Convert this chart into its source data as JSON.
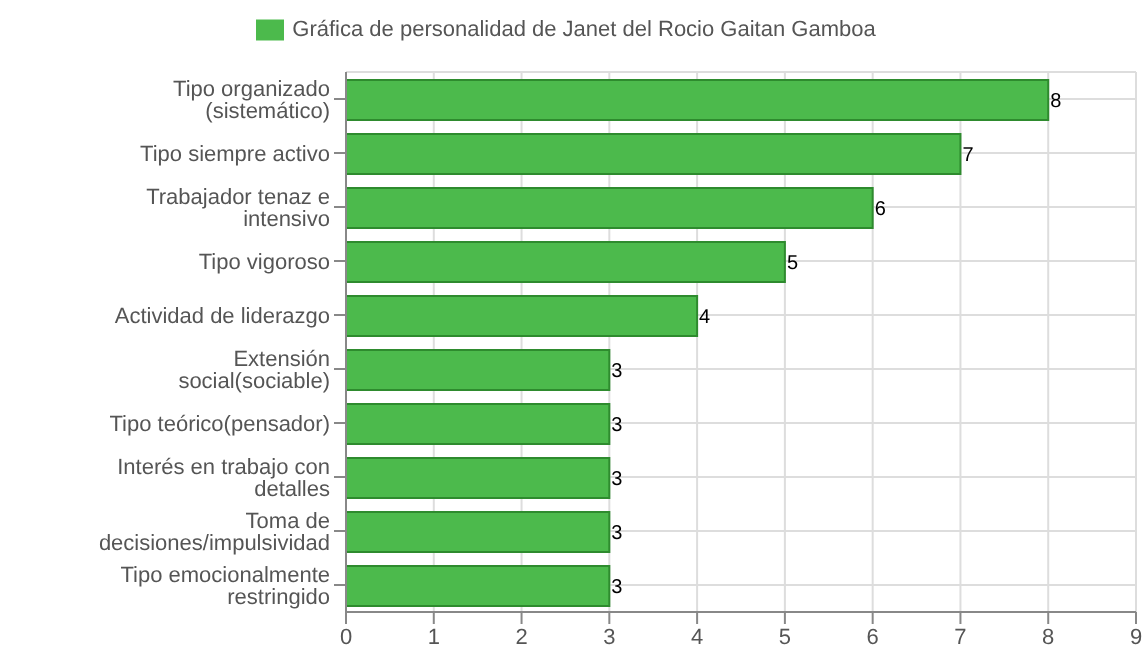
{
  "chart_data": {
    "type": "bar",
    "orientation": "horizontal",
    "categories": [
      "Tipo organizado (sistemático)",
      "Tipo siempre activo",
      "Trabajador tenaz e intensivo",
      "Tipo vigoroso",
      "Actividad de liderazgo",
      "Extensión social(sociable)",
      "Tipo teórico(pensador)",
      "Interés en trabajo con detalles",
      "Toma de decisiones/impulsividad",
      "Tipo emocionalmente restringido"
    ],
    "series": [
      {
        "name": "Gráfica de personalidad de Janet del Rocio Gaitan Gamboa",
        "color": "#4cba4c",
        "values": [
          8,
          7,
          6,
          5,
          4,
          3,
          3,
          3,
          3,
          3
        ]
      }
    ],
    "xlim": [
      0,
      9
    ],
    "xticks": [
      0,
      1,
      2,
      3,
      4,
      5,
      6,
      7,
      8,
      9
    ],
    "grid": true,
    "legend": "top",
    "data_labels": true
  }
}
